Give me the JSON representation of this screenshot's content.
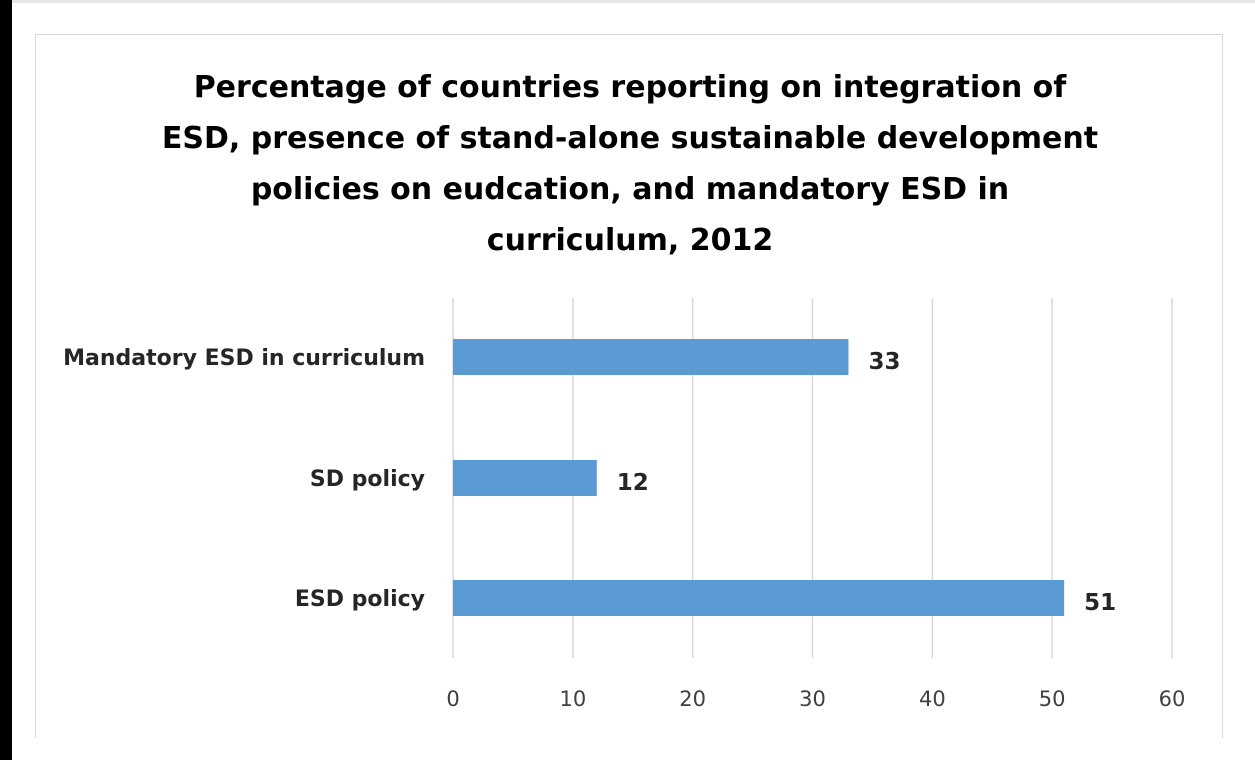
{
  "chart_data": {
    "type": "bar",
    "orientation": "horizontal",
    "title": "Percentage of countries reporting on integration of\nESD, presence of stand-alone sustainable development\npolicies on eudcation, and mandatory ESD in\ncurriculum, 2012",
    "categories": [
      "ESD policy",
      "SD policy",
      "Mandatory ESD in curriculum"
    ],
    "values": [
      51,
      12,
      33
    ],
    "data_labels": [
      "51",
      "12",
      "33"
    ],
    "xlim": [
      0,
      60
    ],
    "xticks": [
      0,
      10,
      20,
      30,
      40,
      50,
      60
    ],
    "xtick_labels": [
      "0",
      "10",
      "20",
      "30",
      "40",
      "50",
      "60"
    ],
    "grid": "vertical",
    "legend": "none",
    "bar_color": "#5b9bd5",
    "grid_color": "#d9d9d9"
  }
}
